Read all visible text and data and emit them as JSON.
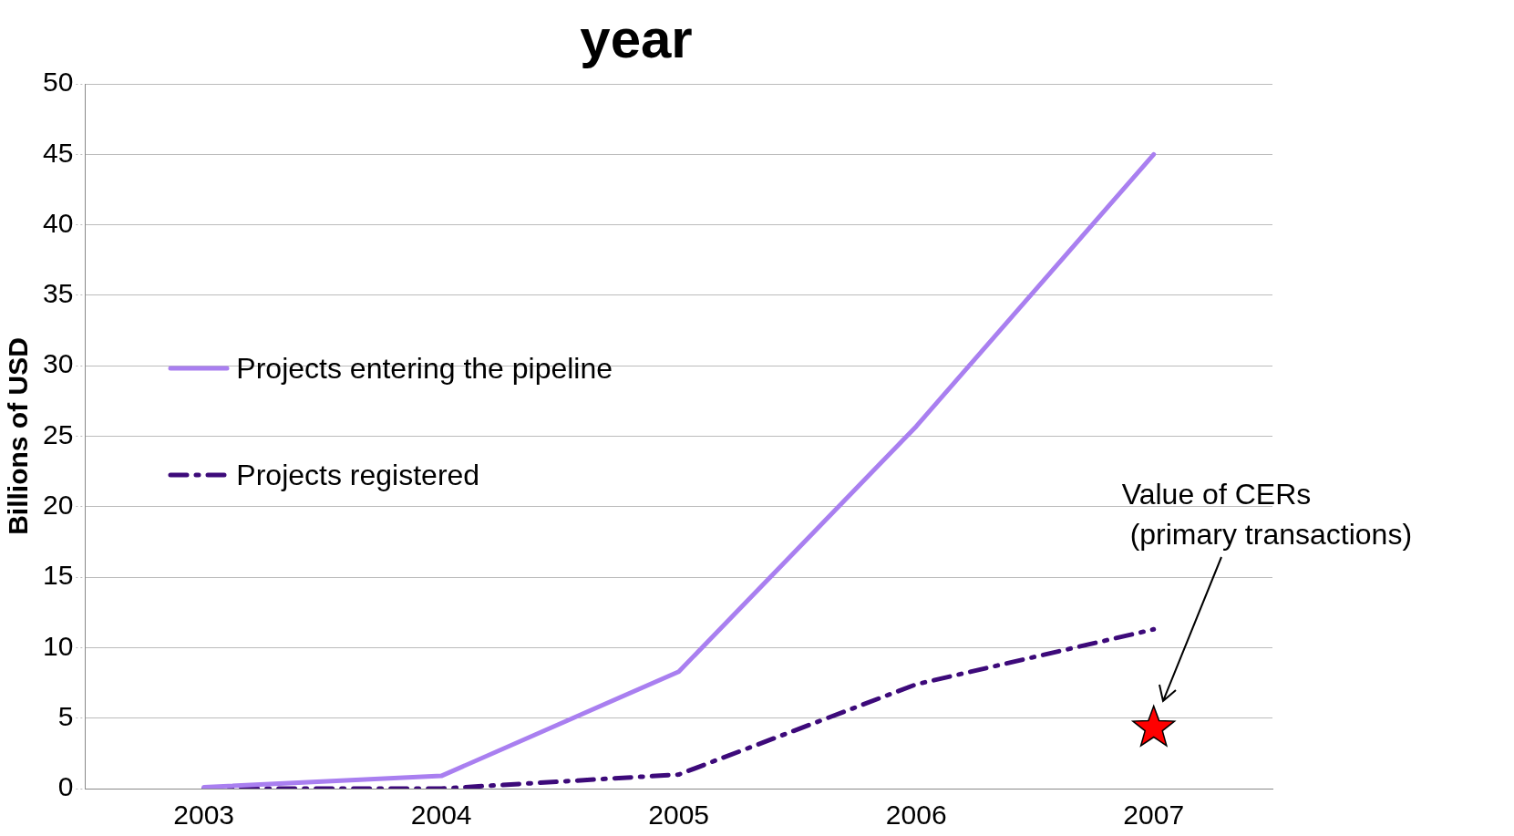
{
  "chart_data": {
    "type": "line",
    "title": "year",
    "ylabel": "Billions of USD",
    "categories": [
      "2003",
      "2004",
      "2005",
      "2006",
      "2007"
    ],
    "series": [
      {
        "name": "Projects entering the pipeline",
        "color": "#a97ff0",
        "values": [
          0.1,
          0.9,
          8.3,
          25.7,
          45
        ],
        "line_style": "solid"
      },
      {
        "name": "Projects registered",
        "color": "#3d0a7a",
        "values": [
          0,
          0,
          1,
          7.4,
          11.3
        ],
        "line_style": "dashed"
      },
      {
        "type": "scatter",
        "color": "#ff0000",
        "values": [
          null,
          null,
          null,
          null,
          4.3
        ],
        "marker": "star"
      }
    ],
    "ylim": [
      0,
      50
    ],
    "yticks": [
      0,
      5,
      10,
      15,
      20,
      25,
      30,
      35,
      40,
      45,
      50
    ],
    "grid": "y",
    "legend": "left",
    "marker": "none",
    "annotations": [
      "Value of CERs\n (primary transactions)"
    ]
  }
}
